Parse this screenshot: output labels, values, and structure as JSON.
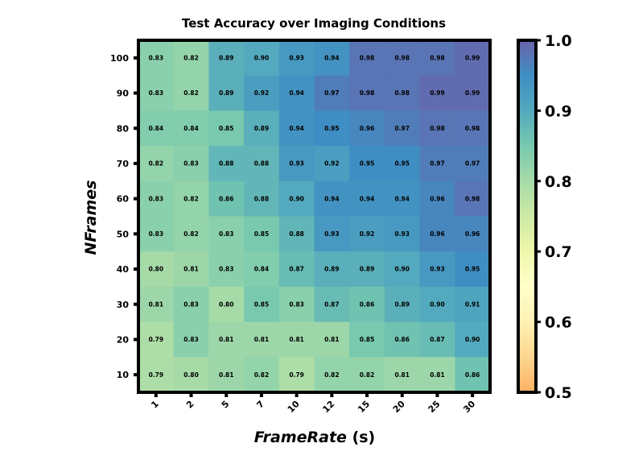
{
  "chart_data": {
    "type": "heatmap",
    "title": "Test Accuracy over Imaging Conditions",
    "xlabel": "FrameRate",
    "xlabel_unit": "(s)",
    "ylabel": "NFrames",
    "x": [
      "1",
      "2",
      "5",
      "7",
      "10",
      "12",
      "15",
      "20",
      "25",
      "30"
    ],
    "y": [
      "100",
      "90",
      "80",
      "70",
      "60",
      "50",
      "40",
      "30",
      "20",
      "10"
    ],
    "values": [
      [
        0.83,
        0.82,
        0.89,
        0.9,
        0.93,
        0.94,
        0.98,
        0.98,
        0.98,
        0.99
      ],
      [
        0.83,
        0.82,
        0.89,
        0.92,
        0.94,
        0.97,
        0.98,
        0.98,
        0.99,
        0.99
      ],
      [
        0.84,
        0.84,
        0.85,
        0.89,
        0.94,
        0.95,
        0.96,
        0.97,
        0.98,
        0.98
      ],
      [
        0.82,
        0.83,
        0.88,
        0.88,
        0.93,
        0.92,
        0.95,
        0.95,
        0.97,
        0.97
      ],
      [
        0.83,
        0.82,
        0.86,
        0.88,
        0.9,
        0.94,
        0.94,
        0.94,
        0.96,
        0.98
      ],
      [
        0.83,
        0.82,
        0.83,
        0.85,
        0.88,
        0.93,
        0.92,
        0.93,
        0.96,
        0.96
      ],
      [
        0.8,
        0.81,
        0.83,
        0.84,
        0.87,
        0.89,
        0.89,
        0.9,
        0.93,
        0.95
      ],
      [
        0.81,
        0.83,
        0.8,
        0.85,
        0.83,
        0.87,
        0.86,
        0.89,
        0.9,
        0.91
      ],
      [
        0.79,
        0.83,
        0.81,
        0.81,
        0.81,
        0.81,
        0.85,
        0.86,
        0.87,
        0.9
      ],
      [
        0.79,
        0.8,
        0.81,
        0.82,
        0.79,
        0.82,
        0.82,
        0.81,
        0.81,
        0.86
      ]
    ],
    "colorbar": {
      "range": [
        0.5,
        1.0
      ],
      "ticks": [
        "0.5",
        "0.6",
        "0.7",
        "0.8",
        "0.9",
        "1.0"
      ],
      "colormap_stops": [
        {
          "v": 0.5,
          "color": "#fdb164"
        },
        {
          "v": 0.55,
          "color": "#fdd690"
        },
        {
          "v": 0.6,
          "color": "#fef1b4"
        },
        {
          "v": 0.65,
          "color": "#ffffca"
        },
        {
          "v": 0.7,
          "color": "#eef7aa"
        },
        {
          "v": 0.75,
          "color": "#cdeaa5"
        },
        {
          "v": 0.8,
          "color": "#a6dba8"
        },
        {
          "v": 0.85,
          "color": "#78c9ae"
        },
        {
          "v": 0.9,
          "color": "#53a9bd"
        },
        {
          "v": 0.95,
          "color": "#3f8ec3"
        },
        {
          "v": 1.0,
          "color": "#6a64ab"
        }
      ]
    },
    "grid": false,
    "legend": "colorbar-right"
  }
}
